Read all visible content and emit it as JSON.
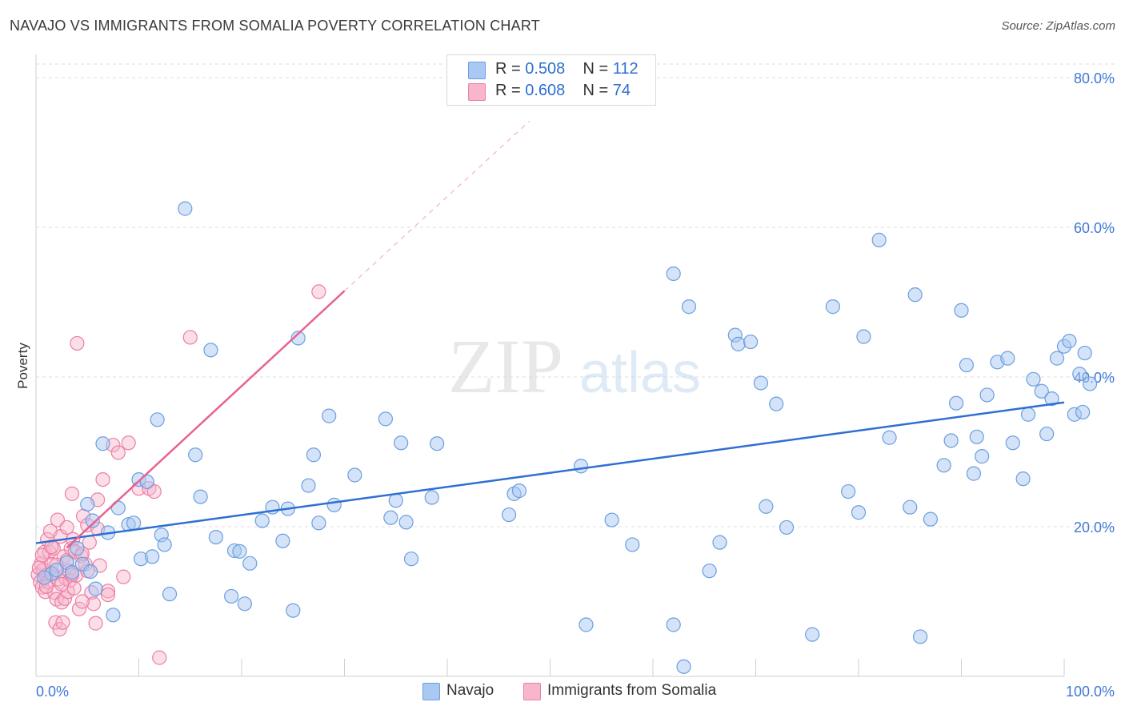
{
  "header": {
    "title": "NAVAJO VS IMMIGRANTS FROM SOMALIA POVERTY CORRELATION CHART",
    "source": "Source: ZipAtlas.com"
  },
  "watermark": {
    "part1": "ZIP",
    "part2": "atlas"
  },
  "colors": {
    "navajo_fill": "#a9c8f2",
    "navajo_stroke": "#6a9fe0",
    "navajo_line": "#2f6fd1",
    "somalia_fill": "#f7b6cb",
    "somalia_stroke": "#ec7fa3",
    "somalia_line": "#e8628f",
    "grid": "#dcdcdc",
    "tick_label": "#3f78d4"
  },
  "legend": {
    "rows": [
      {
        "r_label": "R = ",
        "r_value": "0.508",
        "n_label": "N = ",
        "n_value": "112"
      },
      {
        "r_label": "R = ",
        "r_value": "0.608",
        "n_label": "N = ",
        "n_value": "74"
      }
    ]
  },
  "bottom_legend": {
    "navajo": "Navajo",
    "somalia": "Immigrants from Somalia"
  },
  "chart_data": {
    "type": "scatter",
    "title": "NAVAJO VS IMMIGRANTS FROM SOMALIA POVERTY CORRELATION CHART",
    "xlabel": "",
    "ylabel": "Poverty",
    "xlim": [
      0,
      100
    ],
    "ylim": [
      0,
      80
    ],
    "x_tick_labels": [
      "0.0%",
      "100.0%"
    ],
    "y_tick_labels": [
      "20.0%",
      "40.0%",
      "60.0%",
      "80.0%"
    ],
    "y_ticks": [
      20,
      40,
      60,
      80
    ],
    "grid": true,
    "legend_position": "top-center",
    "series": [
      {
        "name": "Navajo",
        "r": 0.508,
        "n": 112,
        "trend": {
          "x": [
            0,
            100
          ],
          "y": [
            17.8,
            36.6
          ]
        },
        "points": [
          [
            1.5,
            13.7
          ],
          [
            2.0,
            14.2
          ],
          [
            3.0,
            15.2
          ],
          [
            3.5,
            13.9
          ],
          [
            4.0,
            17.1
          ],
          [
            4.5,
            15.0
          ],
          [
            5.0,
            23.0
          ],
          [
            5.3,
            14.0
          ],
          [
            5.5,
            20.8
          ],
          [
            5.8,
            11.7
          ],
          [
            6.5,
            31.1
          ],
          [
            7.0,
            19.2
          ],
          [
            7.5,
            8.2
          ],
          [
            8.0,
            22.5
          ],
          [
            9.0,
            20.3
          ],
          [
            9.5,
            20.5
          ],
          [
            10.0,
            26.3
          ],
          [
            10.2,
            15.7
          ],
          [
            10.8,
            26.0
          ],
          [
            11.3,
            16.0
          ],
          [
            11.8,
            34.3
          ],
          [
            12.2,
            18.9
          ],
          [
            12.5,
            17.6
          ],
          [
            13.0,
            11.0
          ],
          [
            14.5,
            62.5
          ],
          [
            15.5,
            29.6
          ],
          [
            16.0,
            24.0
          ],
          [
            17.0,
            43.6
          ],
          [
            17.5,
            18.6
          ],
          [
            19.0,
            10.7
          ],
          [
            19.3,
            16.8
          ],
          [
            19.8,
            16.7
          ],
          [
            20.3,
            9.7
          ],
          [
            20.8,
            15.1
          ],
          [
            22.0,
            20.8
          ],
          [
            23.0,
            22.6
          ],
          [
            24.0,
            18.1
          ],
          [
            24.5,
            22.4
          ],
          [
            25.0,
            8.8
          ],
          [
            25.5,
            45.2
          ],
          [
            26.5,
            25.5
          ],
          [
            27.0,
            29.6
          ],
          [
            27.5,
            20.5
          ],
          [
            28.5,
            34.8
          ],
          [
            29.0,
            22.9
          ],
          [
            31.0,
            26.9
          ],
          [
            34.0,
            34.4
          ],
          [
            34.5,
            21.2
          ],
          [
            35.0,
            23.5
          ],
          [
            35.5,
            31.2
          ],
          [
            36.0,
            20.6
          ],
          [
            36.5,
            15.7
          ],
          [
            38.5,
            23.9
          ],
          [
            39.0,
            31.1
          ],
          [
            46.0,
            21.6
          ],
          [
            46.5,
            24.4
          ],
          [
            47.0,
            24.8
          ],
          [
            53.0,
            28.1
          ],
          [
            53.5,
            6.9
          ],
          [
            56.0,
            20.9
          ],
          [
            58.0,
            17.6
          ],
          [
            62.0,
            53.8
          ],
          [
            62.0,
            6.9
          ],
          [
            63.5,
            49.4
          ],
          [
            65.5,
            14.1
          ],
          [
            66.5,
            17.9
          ],
          [
            68.0,
            45.6
          ],
          [
            68.3,
            44.4
          ],
          [
            69.5,
            44.7
          ],
          [
            70.5,
            39.2
          ],
          [
            71.0,
            22.7
          ],
          [
            72.0,
            36.4
          ],
          [
            73.0,
            19.9
          ],
          [
            75.5,
            5.6
          ],
          [
            77.5,
            49.4
          ],
          [
            79.0,
            24.7
          ],
          [
            80.0,
            21.9
          ],
          [
            80.5,
            45.4
          ],
          [
            82.0,
            58.3
          ],
          [
            83.0,
            31.9
          ],
          [
            85.0,
            22.6
          ],
          [
            85.5,
            51.0
          ],
          [
            86.0,
            5.3
          ],
          [
            87.0,
            21.0
          ],
          [
            88.3,
            28.2
          ],
          [
            89.0,
            31.5
          ],
          [
            89.5,
            36.5
          ],
          [
            90.0,
            48.9
          ],
          [
            90.5,
            41.6
          ],
          [
            91.2,
            27.1
          ],
          [
            91.5,
            32.0
          ],
          [
            92.0,
            29.4
          ],
          [
            92.5,
            37.6
          ],
          [
            93.5,
            42.0
          ],
          [
            94.5,
            42.5
          ],
          [
            95.0,
            31.2
          ],
          [
            96.0,
            26.4
          ],
          [
            96.5,
            35.0
          ],
          [
            97.0,
            39.7
          ],
          [
            97.8,
            38.1
          ],
          [
            98.3,
            32.4
          ],
          [
            98.8,
            37.1
          ],
          [
            99.3,
            42.5
          ],
          [
            100.0,
            44.1
          ],
          [
            100.5,
            44.8
          ],
          [
            101.0,
            35.0
          ],
          [
            101.5,
            40.4
          ],
          [
            102.0,
            43.2
          ],
          [
            102.5,
            39.1
          ],
          [
            101.8,
            35.3
          ],
          [
            63.0,
            1.3
          ],
          [
            0.8,
            13.2
          ]
        ]
      },
      {
        "name": "Immigrants from Somalia",
        "r": 0.608,
        "n": 74,
        "trend": {
          "x": [
            3.0,
            30.0
          ],
          "y": [
            17.2,
            51.5
          ]
        },
        "trend_dashed_extension": {
          "x": [
            30.0,
            48.0
          ],
          "y": [
            51.5,
            74.2
          ]
        },
        "points": [
          [
            0.2,
            13.6
          ],
          [
            0.4,
            12.6
          ],
          [
            0.5,
            15.1
          ],
          [
            0.6,
            11.9
          ],
          [
            0.7,
            14.2
          ],
          [
            0.8,
            16.6
          ],
          [
            0.9,
            11.3
          ],
          [
            1.0,
            13.5
          ],
          [
            1.1,
            18.3
          ],
          [
            1.2,
            12.6
          ],
          [
            1.3,
            16.6
          ],
          [
            1.4,
            19.4
          ],
          [
            1.5,
            15.0
          ],
          [
            1.6,
            13.8
          ],
          [
            1.7,
            17.1
          ],
          [
            1.8,
            11.2
          ],
          [
            1.9,
            7.2
          ],
          [
            2.0,
            10.3
          ],
          [
            2.1,
            20.9
          ],
          [
            2.2,
            13.0
          ],
          [
            2.3,
            6.3
          ],
          [
            2.4,
            18.7
          ],
          [
            2.5,
            9.9
          ],
          [
            2.6,
            7.2
          ],
          [
            2.7,
            16.0
          ],
          [
            2.8,
            10.4
          ],
          [
            2.9,
            13.1
          ],
          [
            3.0,
            15.5
          ],
          [
            3.1,
            11.3
          ],
          [
            3.2,
            14.1
          ],
          [
            3.3,
            12.8
          ],
          [
            3.4,
            17.1
          ],
          [
            3.5,
            24.4
          ],
          [
            3.6,
            18.3
          ],
          [
            3.7,
            11.8
          ],
          [
            3.8,
            16.7
          ],
          [
            3.9,
            13.5
          ],
          [
            4.0,
            44.5
          ],
          [
            4.2,
            9.0
          ],
          [
            4.4,
            16.1
          ],
          [
            4.6,
            21.4
          ],
          [
            4.8,
            15.0
          ],
          [
            5.0,
            20.2
          ],
          [
            5.2,
            17.9
          ],
          [
            5.4,
            11.2
          ],
          [
            5.6,
            9.7
          ],
          [
            5.8,
            7.1
          ],
          [
            6.0,
            19.7
          ],
          [
            6.2,
            14.8
          ],
          [
            6.5,
            26.3
          ],
          [
            7.0,
            11.4
          ],
          [
            7.5,
            30.9
          ],
          [
            8.0,
            29.9
          ],
          [
            8.5,
            13.3
          ],
          [
            9.0,
            31.2
          ],
          [
            10.0,
            25.1
          ],
          [
            11.0,
            25.1
          ],
          [
            11.5,
            24.7
          ],
          [
            12.0,
            2.5
          ],
          [
            15.0,
            45.3
          ],
          [
            27.5,
            51.4
          ],
          [
            0.3,
            14.5
          ],
          [
            0.6,
            16.2
          ],
          [
            1.0,
            12.0
          ],
          [
            1.5,
            17.3
          ],
          [
            2.0,
            14.9
          ],
          [
            2.5,
            12.3
          ],
          [
            3.0,
            19.9
          ],
          [
            3.5,
            13.6
          ],
          [
            4.5,
            16.4
          ],
          [
            5.0,
            14.1
          ],
          [
            6.0,
            23.6
          ],
          [
            4.5,
            10.0
          ],
          [
            7.0,
            10.9
          ]
        ]
      }
    ]
  }
}
